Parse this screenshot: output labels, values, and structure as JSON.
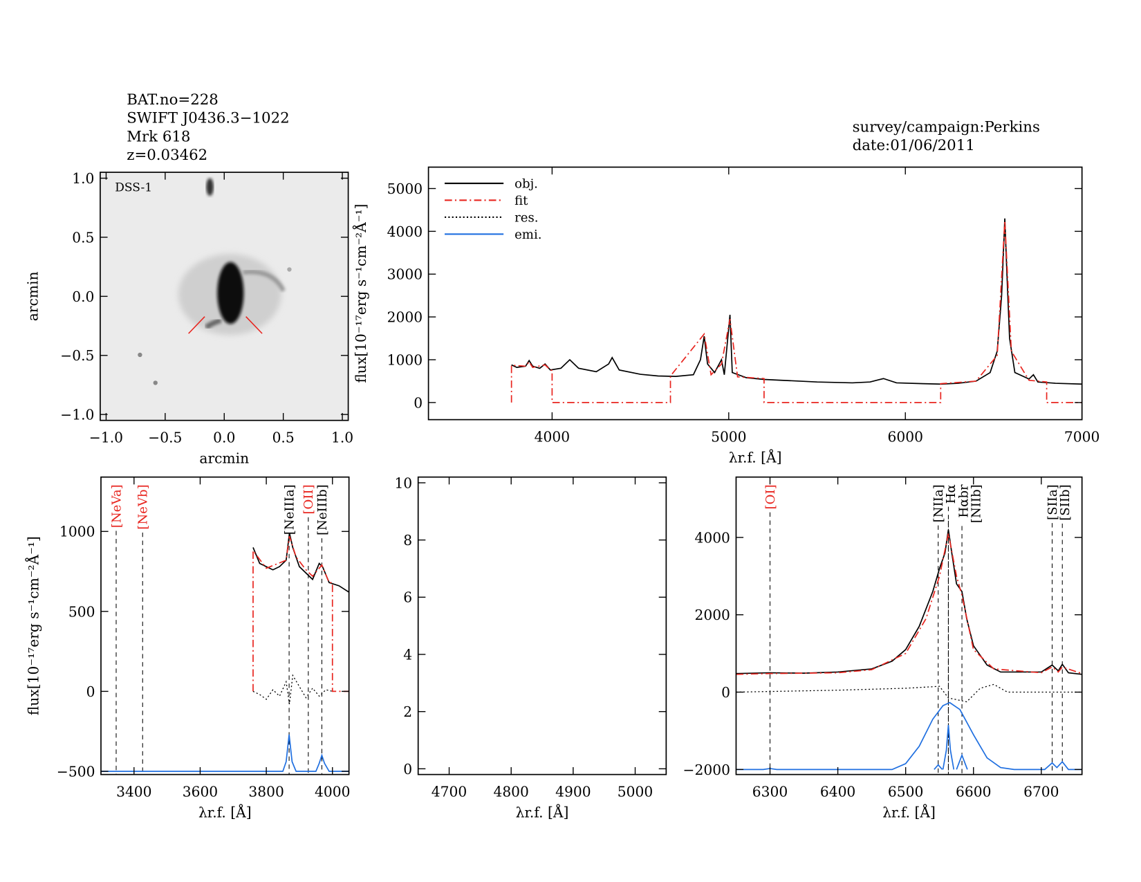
{
  "header": {
    "lines": [
      "BAT.no=228",
      "SWIFT J0436.3−1022",
      "Mrk 618",
      "z=0.03462"
    ],
    "survey": "survey/campaign:Perkins",
    "date": "date:01/06/2011"
  },
  "chart_data": [
    {
      "type": "image",
      "label": "DSS-1",
      "x_label": "arcmin",
      "y_label": "arcmin",
      "xlim": [
        -1.05,
        1.05
      ],
      "ylim": [
        -1.05,
        1.05
      ],
      "xticks": [
        {
          "value": -1,
          "label": "−1.0"
        },
        {
          "value": -0.5,
          "label": "−0.5"
        },
        {
          "value": 0,
          "label": "0.0"
        },
        {
          "value": 0.5,
          "label": "0.5"
        },
        {
          "value": 1,
          "label": "1.0"
        }
      ],
      "yticks": [
        {
          "value": -1,
          "label": "−1.0"
        },
        {
          "value": -0.5,
          "label": "−0.5"
        },
        {
          "value": 0,
          "label": "0.0"
        },
        {
          "value": 0.5,
          "label": "0.5"
        },
        {
          "value": 1,
          "label": "1.0"
        }
      ]
    },
    {
      "type": "line",
      "x_label": "λr.f. [Å]",
      "y_label": "flux[10⁻¹⁷erg s⁻¹cm⁻²Å⁻¹]",
      "xlim": [
        3300,
        7000
      ],
      "ylim": [
        -400,
        5500
      ],
      "xticks": [
        4000,
        5000,
        6000,
        7000
      ],
      "yticks": [
        0,
        1000,
        2000,
        3000,
        4000,
        5000
      ],
      "legend": "upper left",
      "series": [
        {
          "name": "obj.",
          "color": "#000000",
          "dash": "solid",
          "x": [
            3770,
            3800,
            3850,
            3870,
            3890,
            3930,
            3960,
            3990,
            4050,
            4100,
            4150,
            4250,
            4320,
            4340,
            4380,
            4500,
            4600,
            4700,
            4800,
            4840,
            4861,
            4880,
            4920,
            4959,
            4975,
            5007,
            5020,
            5100,
            5200,
            5300,
            5400,
            5500,
            5600,
            5700,
            5800,
            5876,
            5950,
            6100,
            6200,
            6300,
            6400,
            6480,
            6520,
            6545,
            6563,
            6575,
            6590,
            6620,
            6700,
            6725,
            6750,
            6850,
            7000
          ],
          "values": [
            880,
            820,
            850,
            980,
            850,
            800,
            900,
            760,
            800,
            1000,
            800,
            720,
            900,
            1050,
            760,
            660,
            620,
            610,
            650,
            1000,
            1550,
            900,
            700,
            1000,
            650,
            2050,
            700,
            580,
            540,
            520,
            500,
            480,
            470,
            460,
            480,
            560,
            460,
            440,
            430,
            450,
            500,
            700,
            1200,
            2500,
            4300,
            3000,
            1500,
            700,
            550,
            650,
            480,
            450,
            430
          ]
        },
        {
          "name": "fit",
          "color": "#e8251f",
          "dash": "dashdot",
          "x": [
            3770,
            3770,
            3850,
            3870,
            3890,
            3960,
            3990,
            4000,
            4000,
            4670,
            4670,
            4861,
            4900,
            4959,
            5007,
            5050,
            5200,
            5200,
            6200,
            6200,
            6400,
            6520,
            6563,
            6600,
            6700,
            6800,
            6800,
            7000
          ],
          "values": [
            0,
            870,
            850,
            950,
            820,
            880,
            760,
            750,
            0,
            0,
            620,
            1600,
            650,
            900,
            1950,
            600,
            560,
            0,
            0,
            440,
            500,
            1100,
            4250,
            1200,
            520,
            480,
            0,
            0
          ]
        },
        {
          "name": "res.",
          "color": "#000000",
          "dash": "dotted"
        },
        {
          "name": "emi.",
          "color": "#1f6fe0",
          "dash": "solid"
        }
      ]
    },
    {
      "type": "line",
      "x_label": "λr.f. [Å]",
      "y_label": "flux[10⁻¹⁷erg s⁻¹cm⁻²Å⁻¹]",
      "xlim": [
        3300,
        4050
      ],
      "ylim": [
        -520,
        1340
      ],
      "xticks": [
        3400,
        3600,
        3800,
        4000
      ],
      "yticks": [
        {
          "value": -500,
          "label": "−500"
        },
        0,
        500,
        1000
      ],
      "lines": [
        {
          "label": "[NeVa]",
          "x": 3346,
          "color": "#e8251f"
        },
        {
          "label": "[NeVb]",
          "x": 3426,
          "color": "#e8251f"
        },
        {
          "label": "[NeIIIa]",
          "x": 3869,
          "color": "#000000"
        },
        {
          "label": "[OII]",
          "x": 3927,
          "color": "#e8251f"
        },
        {
          "label": "[NeIIIb]",
          "x": 3968,
          "color": "#000000"
        }
      ],
      "series": [
        {
          "name": "obj.",
          "color": "#000000",
          "dash": "solid",
          "x": [
            3760,
            3770,
            3780,
            3800,
            3820,
            3840,
            3860,
            3870,
            3880,
            3900,
            3920,
            3940,
            3960,
            3970,
            3990,
            4020,
            4050
          ],
          "values": [
            900,
            850,
            800,
            780,
            760,
            780,
            820,
            990,
            900,
            780,
            740,
            700,
            800,
            780,
            680,
            660,
            620
          ]
        },
        {
          "name": "fit",
          "color": "#e8251f",
          "dash": "dashdot",
          "x": [
            3760,
            3760,
            3800,
            3860,
            3870,
            3890,
            3920,
            3940,
            3968,
            3990,
            4000,
            4000,
            4050
          ],
          "values": [
            0,
            880,
            770,
            820,
            970,
            840,
            760,
            720,
            790,
            680,
            680,
            0,
            0
          ]
        },
        {
          "name": "res.",
          "color": "#000000",
          "dash": "dotted",
          "x": [
            3760,
            3780,
            3800,
            3820,
            3840,
            3860,
            3870,
            3880,
            3900,
            3920,
            3940,
            3960,
            3980,
            4000
          ],
          "values": [
            0,
            -20,
            -50,
            10,
            -30,
            60,
            -80,
            100,
            30,
            -40,
            20,
            -30,
            10,
            0
          ]
        },
        {
          "name": "emi.",
          "color": "#1f6fe0",
          "dash": "solid",
          "x": [
            3300,
            3850,
            3860,
            3869,
            3878,
            3890,
            3950,
            3960,
            3968,
            3976,
            3990,
            4050
          ],
          "values": [
            -500,
            -500,
            -440,
            -270,
            -440,
            -500,
            -500,
            -450,
            -400,
            -450,
            -500,
            -500
          ]
        }
      ]
    },
    {
      "type": "line",
      "x_label": "λr.f. [Å]",
      "xlim": [
        4650,
        5050
      ],
      "ylim": [
        -0.2,
        10.2
      ],
      "xticks": [
        4700,
        4800,
        4900,
        5000
      ],
      "yticks": [
        0,
        2,
        4,
        6,
        8,
        10
      ]
    },
    {
      "type": "line",
      "x_label": "λr.f. [Å]",
      "xlim": [
        6250,
        6760
      ],
      "ylim": [
        -2130,
        5560
      ],
      "xticks": [
        6300,
        6400,
        6500,
        6600,
        6700
      ],
      "yticks": [
        {
          "value": -2000,
          "label": "−2000"
        },
        0,
        2000,
        4000
      ],
      "lines": [
        {
          "label": "[OI]",
          "x": 6300,
          "color": "#e8251f"
        },
        {
          "label": "[NIIa]",
          "x": 6548,
          "color": "#000000"
        },
        {
          "label": "Hα",
          "x": 6563,
          "color": "#000000"
        },
        {
          "label": "Hαbr",
          "x": 6563,
          "color": "#000000"
        },
        {
          "label": "[NIIb]",
          "x": 6583,
          "color": "#000000"
        },
        {
          "label": "[SIIa]",
          "x": 6716,
          "color": "#000000"
        },
        {
          "label": "[SIIb]",
          "x": 6731,
          "color": "#000000"
        }
      ],
      "series": [
        {
          "name": "obj.",
          "color": "#000000",
          "dash": "solid",
          "x": [
            6250,
            6300,
            6350,
            6400,
            6450,
            6480,
            6500,
            6520,
            6540,
            6550,
            6558,
            6563,
            6568,
            6575,
            6583,
            6590,
            6600,
            6620,
            6640,
            6700,
            6716,
            6725,
            6731,
            6740,
            6760
          ],
          "values": [
            480,
            500,
            490,
            520,
            600,
            800,
            1100,
            1700,
            2600,
            3200,
            3600,
            4200,
            3600,
            2800,
            2600,
            1900,
            1200,
            700,
            520,
            520,
            700,
            550,
            720,
            500,
            460
          ]
        },
        {
          "name": "fit",
          "color": "#e8251f",
          "dash": "dashdot",
          "x": [
            6250,
            6300,
            6400,
            6450,
            6500,
            6530,
            6550,
            6563,
            6575,
            6583,
            6600,
            6630,
            6700,
            6716,
            6725,
            6731,
            6760
          ],
          "values": [
            460,
            480,
            500,
            580,
            1000,
            1900,
            3000,
            4100,
            3000,
            2500,
            1100,
            600,
            500,
            650,
            520,
            650,
            480
          ]
        },
        {
          "name": "res.",
          "color": "#000000",
          "dash": "dotted",
          "x": [
            6250,
            6400,
            6500,
            6550,
            6563,
            6590,
            6610,
            6630,
            6650,
            6760
          ],
          "values": [
            0,
            50,
            100,
            150,
            -150,
            -250,
            100,
            200,
            0,
            0
          ]
        },
        {
          "name": "emi.",
          "color": "#1f6fe0",
          "dash": "solid",
          "x": [
            6250,
            6290,
            6300,
            6310,
            6480,
            6500,
            6520,
            6540,
            6555,
            6565,
            6580,
            6600,
            6620,
            6640,
            6660,
            6705,
            6716,
            6723,
            6731,
            6740,
            6760,
            6555,
            6555,
            6560,
            6563,
            6566,
            6571,
            6575,
            6575,
            6583,
            6591,
            6542,
            6542,
            6548,
            6554
          ],
          "values": [
            -2000,
            -2000,
            -1975,
            -2000,
            -2000,
            -1850,
            -1400,
            -700,
            -350,
            -270,
            -450,
            -1100,
            -1700,
            -1950,
            -2000,
            -2000,
            -1830,
            -1950,
            -1800,
            -2000,
            -2000,
            null,
            -2000,
            -1500,
            -850,
            -1500,
            -2000,
            null,
            -2000,
            -1630,
            -2000,
            null,
            -2000,
            -1880,
            -2000
          ]
        }
      ]
    }
  ]
}
